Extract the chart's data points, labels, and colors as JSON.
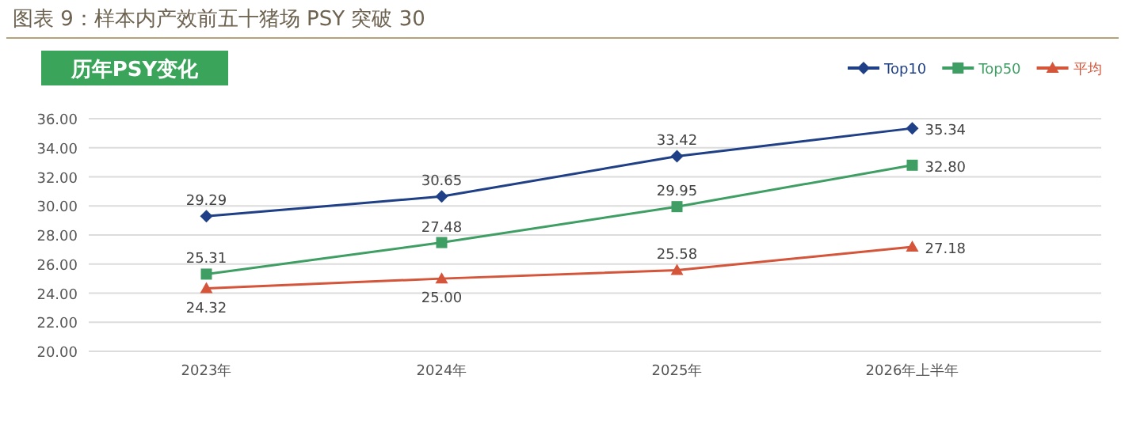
{
  "chart_data": {
    "type": "line",
    "title": "图表 9：样本内产效前五十猪场 PSY 突破 30",
    "subtitle": "历年PSY变化",
    "categories": [
      "2023年",
      "2024年",
      "2025年",
      "2026年上半年"
    ],
    "series": [
      {
        "name": "Top10",
        "color": "#1f3f86",
        "marker": "diamond",
        "values": [
          29.29,
          30.65,
          33.42,
          35.34
        ],
        "value_labels": [
          "29.29",
          "30.65",
          "33.42",
          "35.34"
        ]
      },
      {
        "name": "Top50",
        "color": "#3f9e63",
        "marker": "square",
        "values": [
          25.31,
          27.48,
          29.95,
          32.8
        ],
        "value_labels": [
          "25.31",
          "27.48",
          "29.95",
          "32.80"
        ]
      },
      {
        "name": "平均",
        "color": "#d4553a",
        "marker": "triangle",
        "values": [
          24.32,
          25.0,
          25.58,
          27.18
        ],
        "value_labels": [
          "24.32",
          "25.00",
          "25.58",
          "27.18"
        ]
      }
    ],
    "ylim": [
      20,
      36
    ],
    "yticks": [
      {
        "value": 20,
        "label": "20.00"
      },
      {
        "value": 22,
        "label": "22.00"
      },
      {
        "value": 24,
        "label": "24.00"
      },
      {
        "value": 26,
        "label": "26.00"
      },
      {
        "value": 28,
        "label": "28.00"
      },
      {
        "value": 30,
        "label": "30.00"
      },
      {
        "value": 32,
        "label": "32.00"
      },
      {
        "value": 34,
        "label": "34.00"
      },
      {
        "value": 36,
        "label": "36.00"
      }
    ],
    "grid": "y",
    "legend": "top right"
  }
}
